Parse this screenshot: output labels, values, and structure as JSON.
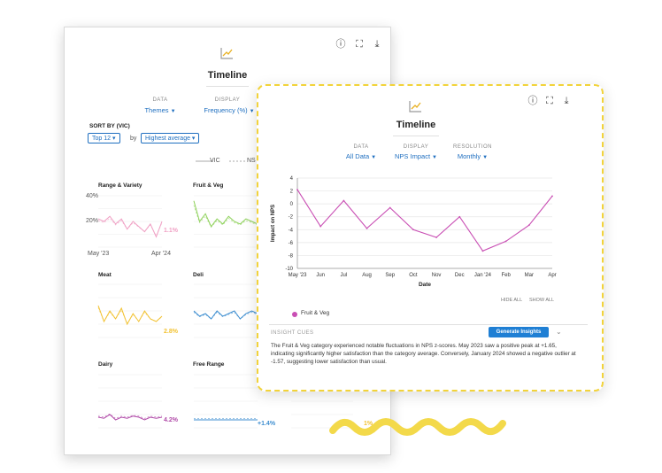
{
  "back_card": {
    "title": "Timeline",
    "data_label": "DATA",
    "data_value": "Themes",
    "display_label": "DISPLAY",
    "display_value": "Frequency (%)",
    "sort_label": "SORT BY (VIC)",
    "sort_top": "Top 12",
    "sort_by": "by",
    "sort_order": "Highest average",
    "legend_vic": "VIC",
    "legend_ns": "NS",
    "small_multiples": [
      {
        "title": "Range & Variety",
        "end_label": "1.1%",
        "color": "#f0a0c4"
      },
      {
        "title": "Fruit & Veg",
        "end_label": "",
        "color": "#8ed15a"
      },
      {
        "title": "Meat",
        "end_label": "2.8%",
        "color": "#f2c232"
      },
      {
        "title": "Deli",
        "end_label": "",
        "color": "#3e8ed0"
      },
      {
        "title": "Dairy",
        "end_label": "4.2%",
        "color": "#b04aa8"
      },
      {
        "title": "Free Range",
        "end_label": "+1.4%",
        "color": "#3e8ed0"
      }
    ],
    "axis_40": "40%",
    "axis_20": "20%",
    "axis_start": "May '23",
    "axis_end": "Apr '24",
    "peek_label": "1%"
  },
  "front_card": {
    "title": "Timeline",
    "data_label": "DATA",
    "data_value": "All Data",
    "display_label": "DISPLAY",
    "display_value": "NPS Impact",
    "resolution_label": "RESOLUTION",
    "resolution_value": "Monthly",
    "hide_all": "HIDE ALL",
    "show_all": "SHOW ALL",
    "insight_title": "INSIGHT CUES",
    "generate_button": "Generate Insights",
    "insight_text": "The Fruit & Veg category experienced notable fluctuations in NPS z-scores. May 2023 saw a positive peak at +1.65, indicating significantly higher satisfaction than the category average. Conversely, January 2024 showed a negative outlier at -1.57, suggesting lower satisfaction than usual."
  },
  "chart_data": {
    "type": "line",
    "xlabel": "Date",
    "ylabel": "Impact on NPS",
    "x": [
      "May '23",
      "Jun",
      "Jul",
      "Aug",
      "Sep",
      "Oct",
      "Nov",
      "Dec",
      "Jan '24",
      "Feb",
      "Mar",
      "Apr"
    ],
    "yticks": [
      4,
      2,
      0,
      -2,
      -4,
      -6,
      -8,
      -10
    ],
    "ylim": [
      -10,
      4
    ],
    "grid": true,
    "legend_position": "bottom-left",
    "series": [
      {
        "name": "Fruit & Veg",
        "color": "#c94fb4",
        "values": [
          2.2,
          -3.5,
          0.5,
          -3.8,
          -0.6,
          -4.0,
          -5.2,
          -2.0,
          -7.3,
          -5.8,
          -3.3,
          1.2
        ]
      }
    ]
  },
  "colors": {
    "accent": "#1f6fc0",
    "highlight_border": "#f2d33a",
    "series": "#c94fb4"
  }
}
